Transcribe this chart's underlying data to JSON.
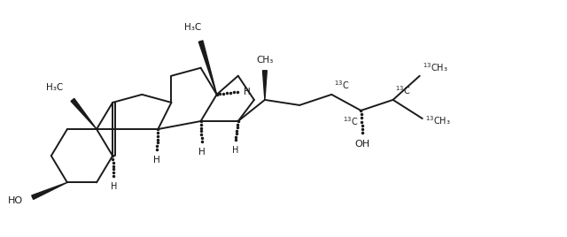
{
  "bg_color": "#ffffff",
  "line_color": "#1a1a1a",
  "line_width": 1.4,
  "fig_width": 6.4,
  "fig_height": 2.68,
  "dpi": 100,
  "xlim": [
    0,
    10.5
  ],
  "ylim": [
    0,
    4.4
  ]
}
